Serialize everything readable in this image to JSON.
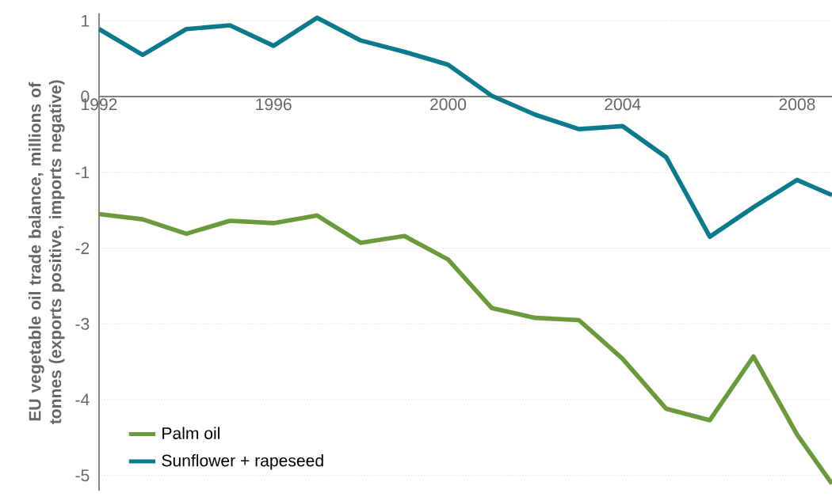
{
  "chart_data": {
    "type": "line",
    "ylabel": "EU vegetable oil trade balance, millions of tonnes (exports positive, imports negative)",
    "x": [
      1992,
      1993,
      1994,
      1995,
      1996,
      1997,
      1998,
      1999,
      2000,
      2001,
      2002,
      2003,
      2004,
      2005,
      2006,
      2007,
      2008,
      2008.8
    ],
    "series": [
      {
        "name": "Palm oil",
        "color": "#6a9a3a",
        "values": [
          -1.55,
          -1.62,
          -1.81,
          -1.64,
          -1.67,
          -1.57,
          -1.93,
          -1.84,
          -2.15,
          -2.79,
          -2.92,
          -2.95,
          -3.46,
          -4.12,
          -4.27,
          -3.43,
          -4.46,
          -5.11
        ]
      },
      {
        "name": "Sunflower + rapeseed",
        "color": "#0a7a8c",
        "values": [
          0.89,
          0.55,
          0.89,
          0.94,
          0.67,
          1.04,
          0.74,
          0.59,
          0.42,
          0.01,
          -0.24,
          -0.43,
          -0.39,
          -0.8,
          -1.85,
          -1.46,
          -1.1,
          -1.3
        ]
      }
    ],
    "xlim": [
      1992,
      2008.8
    ],
    "ylim": [
      -5.2,
      1.1
    ],
    "xticks": [
      1992,
      1996,
      2000,
      2004,
      2008
    ],
    "yticks": [
      -5,
      -4,
      -3,
      -2,
      -1,
      0,
      1
    ],
    "grid": "y",
    "legend": "bottom left",
    "marker": "none",
    "line_style": "solid"
  }
}
